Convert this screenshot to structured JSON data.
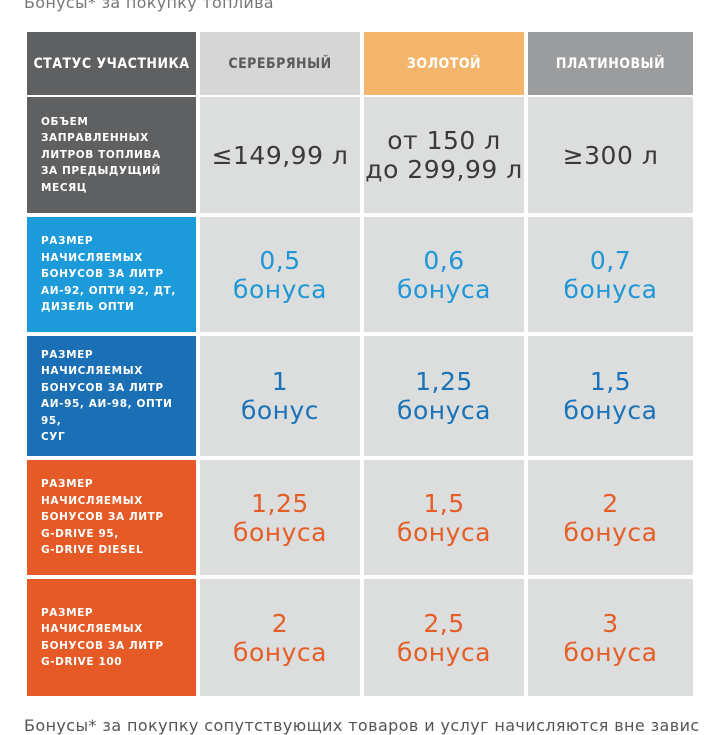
{
  "captions": {
    "top": "Бонусы* за покупку топлива",
    "bottom": "Бонусы* за покупку сопутствующих товаров и услуг начисляются вне зависимости от"
  },
  "header": {
    "status_label": "СТАТУС УЧАСТНИКА",
    "silver": "СЕРЕБРЯНЫЙ",
    "gold": "ЗОЛОТОЙ",
    "platinum": "ПЛАТИНОВЫЙ"
  },
  "rows": [
    {
      "label": "ОБЪЕМ ЗАПРАВЛЕННЫХ\nЛИТРОВ ТОПЛИВА\nЗА ПРЕДЫДУЩИЙ\nМЕСЯЦ",
      "silver": "≤149,99 л",
      "gold": "от 150 л\nдо 299,99 л",
      "platinum": "≥300 л"
    },
    {
      "label": "РАЗМЕР НАЧИСЛЯЕМЫХ\nБОНУСОВ  ЗА ЛИТР\nАИ-92, ОПТИ 92, ДТ,\nДИЗЕЛЬ ОПТИ",
      "silver": "0,5\nбонуса",
      "gold": "0,6\nбонуса",
      "platinum": "0,7\nбонуса"
    },
    {
      "label": "РАЗМЕР НАЧИСЛЯЕМЫХ\nБОНУСОВ  ЗА ЛИТР\nАИ-95, АИ-98, ОПТИ 95,\nСУГ",
      "silver": "1\nбонус",
      "gold": "1,25\nбонуса",
      "platinum": "1,5\nбонуса"
    },
    {
      "label": "РАЗМЕР НАЧИСЛЯЕМЫХ\nБОНУСОВ  ЗА ЛИТР\nG-DRIVE 95,\nG-DRIVE DIESEL",
      "silver": "1,25\nбонуса",
      "gold": "1,5\nбонуса",
      "platinum": "2\nбонуса"
    },
    {
      "label": "РАЗМЕР НАЧИСЛЯЕМЫХ\nБОНУСОВ ЗА ЛИТР\nG-DRIVE 100",
      "silver": "2\nбонуса",
      "gold": "2,5\nбонуса",
      "platinum": "3\nбонуса"
    }
  ],
  "colors": {
    "header_dark": "#5f6062",
    "header_gray": "#d6d6d6",
    "header_gold": "#f2b56b",
    "header_platinum": "#9b9c9e",
    "row_volume": "#5f6062",
    "row_cyan": "#1d9ad9",
    "row_blue": "#1a6fb5",
    "row_orange": "#e55a26",
    "value_bg": "#dcdddd"
  }
}
